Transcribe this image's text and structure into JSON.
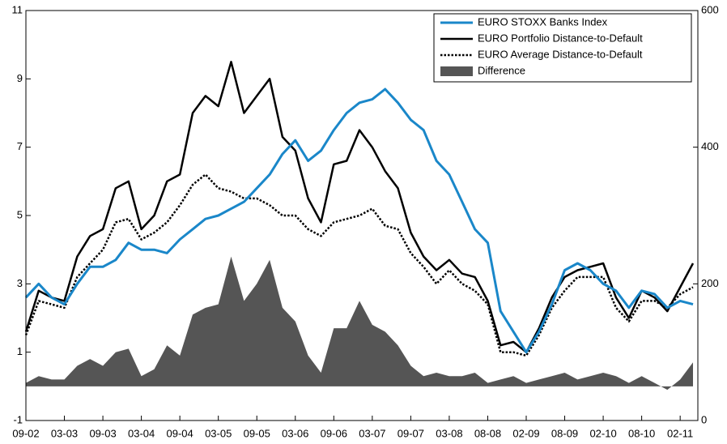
{
  "chart_data": {
    "type": "line",
    "categories": [
      "09-02",
      null,
      null,
      "03-03",
      null,
      null,
      "09-03",
      null,
      null,
      "03-04",
      null,
      null,
      "09-04",
      null,
      null,
      "03-05",
      null,
      null,
      "09-05",
      null,
      null,
      "03-06",
      null,
      null,
      "09-06",
      null,
      null,
      "03-07",
      null,
      null,
      "09-07",
      null,
      null,
      "03-08",
      null,
      null,
      "08-08",
      null,
      null,
      "02-09",
      null,
      null,
      "08-09",
      null,
      null,
      "02-10",
      null,
      null,
      "08-10",
      null,
      null,
      "02-11",
      null
    ],
    "ylim": [
      -1,
      11
    ],
    "yticks": [
      -1,
      1,
      3,
      5,
      7,
      9,
      11
    ],
    "y2lim": [
      0,
      600
    ],
    "y2ticks": [
      0,
      200,
      400,
      600
    ],
    "legend": "upper right",
    "series": [
      {
        "name": "EURO STOXX Banks Index",
        "color": "#1a87c9",
        "style": "solid",
        "axis": "y2",
        "values": [
          180,
          200,
          180,
          170,
          200,
          225,
          225,
          235,
          260,
          250,
          250,
          245,
          265,
          280,
          295,
          300,
          310,
          320,
          340,
          360,
          390,
          410,
          380,
          395,
          425,
          450,
          465,
          470,
          485,
          465,
          440,
          425,
          380,
          360,
          320,
          280,
          260,
          160,
          130,
          100,
          130,
          170,
          220,
          230,
          220,
          200,
          190,
          165,
          190,
          185,
          165,
          175,
          170
        ]
      },
      {
        "name": "EURO Portfolio Distance-to-Default",
        "color": "#000000",
        "style": "solid",
        "values": [
          1.6,
          2.8,
          2.6,
          2.5,
          3.8,
          4.4,
          4.6,
          5.8,
          6.0,
          4.6,
          5.0,
          6.0,
          6.2,
          8.0,
          8.5,
          8.2,
          9.5,
          8.0,
          8.5,
          9.0,
          7.3,
          6.9,
          5.5,
          4.8,
          6.5,
          6.6,
          7.5,
          7.0,
          6.3,
          5.8,
          4.5,
          3.8,
          3.4,
          3.7,
          3.3,
          3.2,
          2.5,
          1.2,
          1.3,
          1.0,
          1.7,
          2.6,
          3.2,
          3.4,
          3.5,
          3.6,
          2.6,
          2.0,
          2.8,
          2.6,
          2.2,
          2.9,
          3.6
        ]
      },
      {
        "name": "EURO Average Distance-to-Default",
        "color": "#000000",
        "style": "dotted",
        "values": [
          1.5,
          2.5,
          2.4,
          2.3,
          3.2,
          3.6,
          4.0,
          4.8,
          4.9,
          4.3,
          4.5,
          4.8,
          5.3,
          5.9,
          6.2,
          5.8,
          5.7,
          5.5,
          5.5,
          5.3,
          5.0,
          5.0,
          4.6,
          4.4,
          4.8,
          4.9,
          5.0,
          5.2,
          4.7,
          4.6,
          3.9,
          3.5,
          3.0,
          3.4,
          3.0,
          2.8,
          2.4,
          1.0,
          1.0,
          0.9,
          1.5,
          2.3,
          2.8,
          3.2,
          3.2,
          3.2,
          2.3,
          1.9,
          2.5,
          2.5,
          2.3,
          2.7,
          2.9
        ]
      },
      {
        "name": "Difference",
        "color": "#555555",
        "style": "area",
        "values": [
          0.1,
          0.3,
          0.2,
          0.2,
          0.6,
          0.8,
          0.6,
          1.0,
          1.1,
          0.3,
          0.5,
          1.2,
          0.9,
          2.1,
          2.3,
          2.4,
          3.8,
          2.5,
          3.0,
          3.7,
          2.3,
          1.9,
          0.9,
          0.4,
          1.7,
          1.7,
          2.5,
          1.8,
          1.6,
          1.2,
          0.6,
          0.3,
          0.4,
          0.3,
          0.3,
          0.4,
          0.1,
          0.2,
          0.3,
          0.1,
          0.2,
          0.3,
          0.4,
          0.2,
          0.3,
          0.4,
          0.3,
          0.1,
          0.3,
          0.1,
          -0.1,
          0.2,
          0.7
        ]
      }
    ]
  }
}
